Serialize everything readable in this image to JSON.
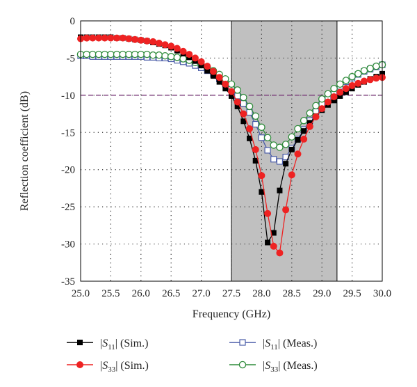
{
  "chart_data": {
    "type": "line",
    "xlabel": "Frequency (GHz)",
    "ylabel": "Reflection coefficient (dB)",
    "xlim": [
      25.0,
      30.0
    ],
    "ylim": [
      -35,
      0
    ],
    "xticks": [
      "25.0",
      "25.5",
      "26.0",
      "26.5",
      "27.0",
      "27.5",
      "28.0",
      "28.5",
      "29.0",
      "29.5",
      "30.0"
    ],
    "yticks": [
      "0",
      "-5",
      "-10",
      "-15",
      "-20",
      "-25",
      "-30",
      "-35"
    ],
    "grid": "dotted",
    "shaded_band": [
      27.5,
      29.25
    ],
    "reference_line": {
      "y": -10,
      "color": "#7a3a7a",
      "style": "dashed"
    },
    "legend_position": "bottom",
    "series": [
      {
        "name": "|S11| (Sim.)",
        "legend": {
          "prefix": "|",
          "sym": "S",
          "sub": "11",
          "suffix": "| (Sim.)"
        },
        "color": "#000000",
        "marker": "square-filled",
        "x": [
          25.0,
          25.1,
          25.2,
          25.3,
          25.4,
          25.5,
          25.6,
          25.7,
          25.8,
          25.9,
          26.0,
          26.1,
          26.2,
          26.3,
          26.4,
          26.5,
          26.6,
          26.7,
          26.8,
          26.9,
          27.0,
          27.1,
          27.2,
          27.3,
          27.4,
          27.5,
          27.6,
          27.7,
          27.8,
          27.9,
          28.0,
          28.1,
          28.2,
          28.3,
          28.4,
          28.5,
          28.6,
          28.7,
          28.8,
          28.9,
          29.0,
          29.1,
          29.2,
          29.3,
          29.4,
          29.5,
          29.6,
          29.7,
          29.8,
          29.9,
          30.0
        ],
        "y": [
          -2.2,
          -2.2,
          -2.2,
          -2.2,
          -2.2,
          -2.2,
          -2.3,
          -2.3,
          -2.4,
          -2.5,
          -2.6,
          -2.7,
          -2.9,
          -3.1,
          -3.3,
          -3.6,
          -4.0,
          -4.4,
          -4.9,
          -5.4,
          -6.0,
          -6.7,
          -7.4,
          -8.2,
          -9.1,
          -10.1,
          -11.5,
          -13.5,
          -15.8,
          -18.8,
          -23.0,
          -29.8,
          -28.5,
          -22.8,
          -19.2,
          -17.3,
          -16.0,
          -14.8,
          -13.7,
          -12.8,
          -12.0,
          -11.3,
          -10.7,
          -10.1,
          -9.6,
          -9.1,
          -8.6,
          -8.2,
          -7.8,
          -7.5,
          -7.1
        ]
      },
      {
        "name": "|S33| (Sim.)",
        "legend": {
          "prefix": "|",
          "sym": "S",
          "sub": "33",
          "suffix": "| (Sim.)"
        },
        "color": "#ee2222",
        "marker": "circle-filled",
        "x": [
          25.0,
          25.1,
          25.2,
          25.3,
          25.4,
          25.5,
          25.6,
          25.7,
          25.8,
          25.9,
          26.0,
          26.1,
          26.2,
          26.3,
          26.4,
          26.5,
          26.6,
          26.7,
          26.8,
          26.9,
          27.0,
          27.1,
          27.2,
          27.3,
          27.4,
          27.5,
          27.6,
          27.7,
          27.8,
          27.9,
          28.0,
          28.1,
          28.2,
          28.3,
          28.4,
          28.5,
          28.6,
          28.7,
          28.8,
          28.9,
          29.0,
          29.1,
          29.2,
          29.3,
          29.4,
          29.5,
          29.6,
          29.7,
          29.8,
          29.9,
          30.0
        ],
        "y": [
          -2.4,
          -2.3,
          -2.3,
          -2.3,
          -2.3,
          -2.3,
          -2.3,
          -2.3,
          -2.4,
          -2.5,
          -2.6,
          -2.7,
          -2.8,
          -3.0,
          -3.2,
          -3.4,
          -3.7,
          -4.1,
          -4.5,
          -5.0,
          -5.5,
          -6.1,
          -6.8,
          -7.6,
          -8.5,
          -9.5,
          -10.9,
          -12.5,
          -14.5,
          -17.3,
          -20.8,
          -25.9,
          -30.3,
          -31.2,
          -25.4,
          -20.7,
          -17.9,
          -15.9,
          -14.2,
          -12.9,
          -11.8,
          -10.9,
          -10.2,
          -9.6,
          -9.1,
          -8.7,
          -8.4,
          -8.1,
          -7.9,
          -7.7,
          -7.6
        ]
      },
      {
        "name": "|S11| (Meas.)",
        "legend": {
          "prefix": "|",
          "sym": "S",
          "sub": "11",
          "suffix": "| (Meas.)"
        },
        "color": "#4a5ca8",
        "marker": "square-open",
        "x": [
          25.0,
          25.1,
          25.2,
          25.3,
          25.4,
          25.5,
          25.6,
          25.7,
          25.8,
          25.9,
          26.0,
          26.1,
          26.2,
          26.3,
          26.4,
          26.5,
          26.6,
          26.7,
          26.8,
          26.9,
          27.0,
          27.1,
          27.2,
          27.3,
          27.4,
          27.5,
          27.6,
          27.7,
          27.8,
          27.9,
          28.0,
          28.1,
          28.2,
          28.3,
          28.4,
          28.5,
          28.6,
          28.7,
          28.8,
          28.9,
          29.0,
          29.1,
          29.2,
          29.3,
          29.4,
          29.5,
          29.6,
          29.7,
          29.8,
          29.9,
          30.0
        ],
        "y": [
          -4.7,
          -4.7,
          -4.8,
          -4.8,
          -4.8,
          -4.8,
          -4.8,
          -4.8,
          -4.8,
          -4.8,
          -4.8,
          -4.9,
          -4.9,
          -5.0,
          -5.0,
          -5.1,
          -5.3,
          -5.5,
          -5.7,
          -6.0,
          -6.3,
          -6.7,
          -7.2,
          -7.8,
          -8.5,
          -9.2,
          -10.1,
          -11.1,
          -12.3,
          -13.9,
          -15.7,
          -17.4,
          -18.6,
          -18.9,
          -18.3,
          -17.1,
          -15.9,
          -14.6,
          -13.4,
          -12.2,
          -11.2,
          -10.3,
          -9.5,
          -8.8,
          -8.2,
          -7.7,
          -7.2,
          -6.8,
          -6.5,
          -6.2,
          -5.9
        ]
      },
      {
        "name": "|S33| (Meas.)",
        "legend": {
          "prefix": "|",
          "sym": "S",
          "sub": "33",
          "suffix": "| (Meas.)"
        },
        "color": "#2e8b3a",
        "marker": "circle-open",
        "x": [
          25.0,
          25.1,
          25.2,
          25.3,
          25.4,
          25.5,
          25.6,
          25.7,
          25.8,
          25.9,
          26.0,
          26.1,
          26.2,
          26.3,
          26.4,
          26.5,
          26.6,
          26.7,
          26.8,
          26.9,
          27.0,
          27.1,
          27.2,
          27.3,
          27.4,
          27.5,
          27.6,
          27.7,
          27.8,
          27.9,
          28.0,
          28.1,
          28.2,
          28.3,
          28.4,
          28.5,
          28.6,
          28.7,
          28.8,
          28.9,
          29.0,
          29.1,
          29.2,
          29.3,
          29.4,
          29.5,
          29.6,
          29.7,
          29.8,
          29.9,
          30.0
        ],
        "y": [
          -4.5,
          -4.5,
          -4.5,
          -4.5,
          -4.5,
          -4.5,
          -4.5,
          -4.5,
          -4.5,
          -4.5,
          -4.5,
          -4.5,
          -4.6,
          -4.6,
          -4.7,
          -4.8,
          -4.9,
          -5.1,
          -5.3,
          -5.6,
          -5.9,
          -6.3,
          -6.7,
          -7.2,
          -7.8,
          -8.5,
          -9.3,
          -10.3,
          -11.5,
          -12.8,
          -14.3,
          -15.7,
          -16.7,
          -17.0,
          -16.6,
          -15.6,
          -14.5,
          -13.4,
          -12.4,
          -11.4,
          -10.5,
          -9.8,
          -9.1,
          -8.5,
          -8.0,
          -7.5,
          -7.1,
          -6.7,
          -6.4,
          -6.1,
          -5.9
        ]
      }
    ]
  }
}
